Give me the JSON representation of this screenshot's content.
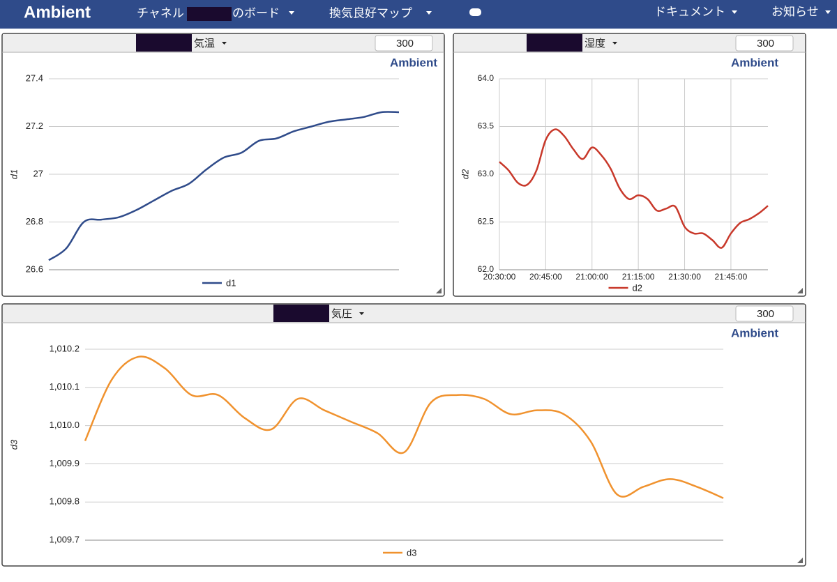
{
  "nav": {
    "brand": "Ambient",
    "menu": [
      "チャネル",
      "のボード",
      "換気良好マップ",
      "ドキュメント",
      "お知らせ"
    ]
  },
  "chart_data": [
    {
      "type": "line",
      "title": "気温",
      "points": 300,
      "brand": "Ambient",
      "ylabel": "d1",
      "ylim": [
        26.6,
        27.4
      ],
      "yticks": [
        26.6,
        26.8,
        27.0,
        27.2,
        27.4
      ],
      "grid": true,
      "series": [
        {
          "name": "d1",
          "color": "#2f4b8a",
          "values": [
            26.64,
            26.69,
            26.8,
            26.81,
            26.82,
            26.85,
            26.89,
            26.93,
            26.96,
            27.02,
            27.07,
            27.09,
            27.14,
            27.15,
            27.18,
            27.2,
            27.22,
            27.23,
            27.24,
            27.26,
            27.26
          ]
        }
      ]
    },
    {
      "type": "line",
      "title": "湿度",
      "points": 300,
      "brand": "Ambient",
      "ylabel": "d2",
      "x": [
        "20:30:00",
        "20:33:00",
        "20:36:00",
        "20:39:00",
        "20:42:00",
        "20:45:00",
        "20:48:00",
        "20:51:00",
        "20:54:00",
        "20:57:00",
        "21:00:00",
        "21:03:00",
        "21:06:00",
        "21:09:00",
        "21:12:00",
        "21:15:00",
        "21:18:00",
        "21:21:00",
        "21:24:00",
        "21:27:00",
        "21:30:00",
        "21:33:00",
        "21:36:00",
        "21:39:00",
        "21:42:00",
        "21:45:00",
        "21:48:00",
        "21:51:00",
        "21:54:00",
        "21:57:00"
      ],
      "xlim": [
        "20:30:00",
        "21:57:00"
      ],
      "xticks": [
        "20:30:00",
        "20:45:00",
        "21:00:00",
        "21:15:00",
        "21:30:00",
        "21:45:00"
      ],
      "ylim": [
        62.0,
        64.0
      ],
      "yticks": [
        {
          "value": 62,
          "label": "62.0"
        },
        62.5,
        {
          "value": 63,
          "label": "63.0"
        },
        63.5,
        {
          "value": 64,
          "label": "64.0"
        }
      ],
      "grid": true,
      "series": [
        {
          "name": "d2",
          "color": "#c8382a",
          "values": [
            63.13,
            63.04,
            62.91,
            62.89,
            63.04,
            63.36,
            63.47,
            63.4,
            63.26,
            63.16,
            63.28,
            63.2,
            63.06,
            62.85,
            62.74,
            62.78,
            62.74,
            62.62,
            62.64,
            62.66,
            62.45,
            62.38,
            62.38,
            62.31,
            62.23,
            62.38,
            62.49,
            62.53,
            62.59,
            62.67
          ]
        }
      ]
    },
    {
      "type": "line",
      "title": "気圧",
      "points": 300,
      "brand": "Ambient",
      "ylabel": "d3",
      "ylim": [
        1009.7,
        1010.2
      ],
      "yticks": [
        {
          "value": 1009.7,
          "label": "1,009.7"
        },
        {
          "value": 1009.8,
          "label": "1,009.8"
        },
        {
          "value": 1009.9,
          "label": "1,009.9"
        },
        {
          "value": 1010.0,
          "label": "1,010.0"
        },
        {
          "value": 1010.1,
          "label": "1,010.1"
        },
        {
          "value": 1010.2,
          "label": "1,010.2"
        }
      ],
      "grid": true,
      "series": [
        {
          "name": "d3",
          "color": "#f0922e",
          "values": [
            1009.96,
            1010.12,
            1010.18,
            1010.15,
            1010.08,
            1010.08,
            1010.02,
            1009.99,
            1010.07,
            1010.04,
            1010.01,
            1009.98,
            1009.93,
            1010.06,
            1010.08,
            1010.07,
            1010.03,
            1010.04,
            1010.03,
            1009.96,
            1009.82,
            1009.84,
            1009.86,
            1009.84,
            1009.81
          ]
        }
      ]
    }
  ]
}
